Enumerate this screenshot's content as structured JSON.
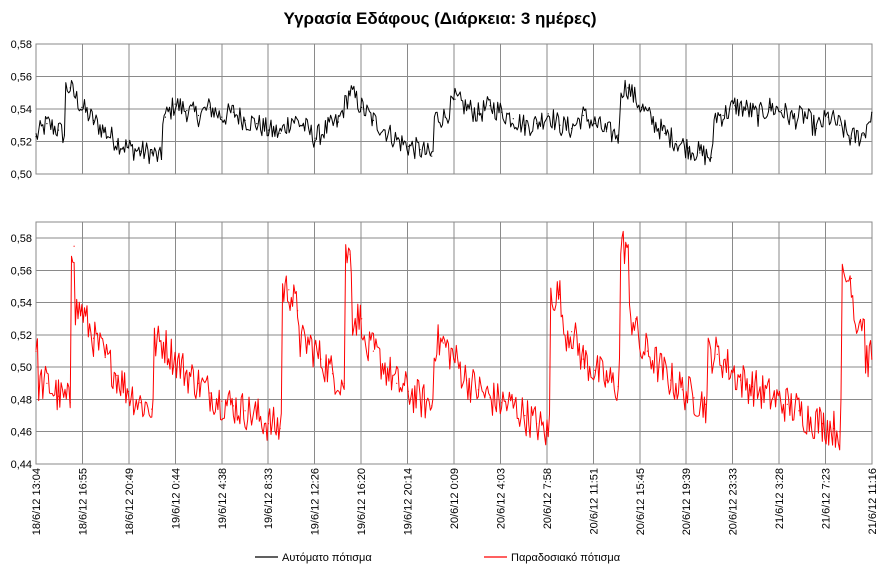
{
  "chart_data": {
    "type": "line",
    "title": "Υγρασία Εδάφους (Διάρκεια: 3 ημέρες)",
    "x_tick_labels": [
      "18/6/12 13:04",
      "18/6/12 16:55",
      "18/6/12 20:49",
      "19/6/12 0:44",
      "19/6/12 4:38",
      "19/6/12 8:33",
      "19/6/12 12:26",
      "19/6/12 16:20",
      "19/6/12 20:14",
      "20/6/12 0:09",
      "20/6/12 4:03",
      "20/6/12 7:58",
      "20/6/12 11:51",
      "20/6/12 15:45",
      "20/6/12 19:39",
      "20/6/12 23:33",
      "21/6/12 3:28",
      "21/6/12 7:23",
      "21/6/12 11:16"
    ],
    "legend_position": "bottom",
    "grid": true,
    "panels": [
      {
        "series_name": "Αυτόματο πότισμα",
        "color": "#000000",
        "ylim": [
          0.5,
          0.58
        ],
        "y_tick_labels": [
          "0,50",
          "0,52",
          "0,54",
          "0,56",
          "0,58"
        ],
        "x": [
          "18/6/12 13:04",
          "18/6/12 14:00",
          "18/6/12 15:00",
          "18/6/12 15:30",
          "18/6/12 16:00",
          "18/6/12 17:00",
          "18/6/12 18:00",
          "18/6/12 19:00",
          "18/6/12 20:00",
          "18/6/12 21:00",
          "18/6/12 22:00",
          "18/6/12 23:00",
          "18/6/12 23:50",
          "19/6/12 0:10",
          "19/6/12 1:00",
          "19/6/12 2:00",
          "19/6/12 3:00",
          "19/6/12 4:00",
          "19/6/12 5:00",
          "19/6/12 6:00",
          "19/6/12 7:00",
          "19/6/12 8:00",
          "19/6/12 9:00",
          "19/6/12 10:00",
          "19/6/12 11:00",
          "19/6/12 12:00",
          "19/6/12 13:00",
          "19/6/12 14:00",
          "19/6/12 15:00",
          "19/6/12 16:00",
          "19/6/12 17:00",
          "19/6/12 18:00",
          "19/6/12 19:00",
          "19/6/12 20:00",
          "19/6/12 21:00",
          "19/6/12 22:00",
          "19/6/12 23:00",
          "20/6/12 0:10",
          "20/6/12 1:00",
          "20/6/12 2:00",
          "20/6/12 3:00",
          "20/6/12 4:00",
          "20/6/12 5:00",
          "20/6/12 6:00",
          "20/6/12 7:00",
          "20/6/12 8:00",
          "20/6/12 9:00",
          "20/6/12 10:00",
          "20/6/12 11:00",
          "20/6/12 12:00",
          "20/6/12 13:00",
          "20/6/12 14:00",
          "20/6/12 15:00",
          "20/6/12 15:50",
          "20/6/12 17:00",
          "20/6/12 18:00",
          "20/6/12 19:00",
          "20/6/12 20:00",
          "20/6/12 21:00",
          "20/6/12 22:00",
          "20/6/12 23:00",
          "21/6/12 0:00",
          "21/6/12 1:00",
          "21/6/12 2:00",
          "21/6/12 3:00",
          "21/6/12 4:00",
          "21/6/12 5:00",
          "21/6/12 6:00",
          "21/6/12 7:00",
          "21/6/12 8:00",
          "21/6/12 9:00",
          "21/6/12 10:00",
          "21/6/12 11:00",
          "21/6/12 12:00",
          "21/6/12 12:45"
        ],
        "y": [
          0.523,
          0.531,
          0.527,
          0.524,
          0.553,
          0.541,
          0.533,
          0.526,
          0.52,
          0.516,
          0.514,
          0.513,
          0.509,
          0.535,
          0.543,
          0.539,
          0.536,
          0.541,
          0.535,
          0.538,
          0.533,
          0.531,
          0.527,
          0.525,
          0.534,
          0.53,
          0.522,
          0.528,
          0.532,
          0.551,
          0.541,
          0.533,
          0.527,
          0.521,
          0.517,
          0.515,
          0.511,
          0.535,
          0.546,
          0.541,
          0.537,
          0.542,
          0.538,
          0.534,
          0.53,
          0.531,
          0.537,
          0.53,
          0.528,
          0.536,
          0.531,
          0.526,
          0.524,
          0.553,
          0.541,
          0.532,
          0.525,
          0.52,
          0.516,
          0.513,
          0.51,
          0.536,
          0.542,
          0.54,
          0.536,
          0.541,
          0.539,
          0.534,
          0.536,
          0.528,
          0.535,
          0.53,
          0.522,
          0.524,
          0.538
        ]
      },
      {
        "series_name": "Παραδοσιακό πότισμα",
        "color": "#ff0000",
        "ylim": [
          0.44,
          0.59
        ],
        "y_tick_labels": [
          "0,44",
          "0,46",
          "0,48",
          "0,50",
          "0,52",
          "0,54",
          "0,56",
          "0,58"
        ],
        "x": [
          "18/6/12 13:04",
          "18/6/12 14:00",
          "18/6/12 15:00",
          "18/6/12 16:00",
          "18/6/12 16:20",
          "18/6/12 17:00",
          "18/6/12 18:00",
          "18/6/12 19:00",
          "18/6/12 20:00",
          "18/6/12 21:00",
          "18/6/12 22:00",
          "18/6/12 23:00",
          "19/6/12 0:00",
          "19/6/12 1:00",
          "19/6/12 2:00",
          "19/6/12 3:00",
          "19/6/12 4:00",
          "19/6/12 5:00",
          "19/6/12 6:00",
          "19/6/12 7:00",
          "19/6/12 8:00",
          "19/6/12 9:00",
          "19/6/12 10:00",
          "19/6/12 10:45",
          "19/6/12 11:30",
          "19/6/12 12:30",
          "19/6/12 13:30",
          "19/6/12 14:30",
          "19/6/12 15:30",
          "19/6/12 16:00",
          "19/6/12 17:00",
          "19/6/12 18:00",
          "19/6/12 19:00",
          "19/6/12 20:00",
          "19/6/12 21:00",
          "19/6/12 22:00",
          "19/6/12 23:00",
          "20/6/12 0:00",
          "20/6/12 1:00",
          "20/6/12 2:00",
          "20/6/12 3:00",
          "20/6/12 4:00",
          "20/6/12 5:00",
          "20/6/12 6:00",
          "20/6/12 7:00",
          "20/6/12 8:00",
          "20/6/12 9:00",
          "20/6/12 10:00",
          "20/6/12 11:00",
          "20/6/12 12:00",
          "20/6/12 13:00",
          "20/6/12 14:00",
          "20/6/12 15:00",
          "20/6/12 15:45",
          "20/6/12 16:30",
          "20/6/12 17:30",
          "20/6/12 18:30",
          "20/6/12 19:30",
          "20/6/12 20:30",
          "20/6/12 21:30",
          "20/6/12 22:30",
          "20/6/12 23:30",
          "21/6/12 0:30",
          "21/6/12 1:30",
          "21/6/12 2:30",
          "21/6/12 3:30",
          "21/6/12 4:30",
          "21/6/12 5:30",
          "21/6/12 6:30",
          "21/6/12 7:30",
          "21/6/12 8:30",
          "21/6/12 9:30",
          "21/6/12 10:00",
          "21/6/12 11:00",
          "21/6/12 12:00",
          "21/6/12 12:45"
        ],
        "y": [
          0.51,
          0.49,
          0.482,
          0.478,
          0.575,
          0.535,
          0.518,
          0.506,
          0.495,
          0.485,
          0.478,
          0.474,
          0.515,
          0.505,
          0.496,
          0.49,
          0.484,
          0.479,
          0.476,
          0.473,
          0.47,
          0.465,
          0.462,
          0.548,
          0.535,
          0.515,
          0.505,
          0.496,
          0.49,
          0.57,
          0.53,
          0.51,
          0.5,
          0.49,
          0.485,
          0.48,
          0.476,
          0.515,
          0.505,
          0.492,
          0.486,
          0.481,
          0.478,
          0.476,
          0.47,
          0.465,
          0.458,
          0.545,
          0.522,
          0.505,
          0.498,
          0.492,
          0.488,
          0.575,
          0.53,
          0.51,
          0.5,
          0.492,
          0.486,
          0.481,
          0.477,
          0.508,
          0.5,
          0.492,
          0.488,
          0.484,
          0.48,
          0.477,
          0.473,
          0.468,
          0.465,
          0.462,
          0.46,
          0.555,
          0.53,
          0.505
        ]
      }
    ]
  }
}
